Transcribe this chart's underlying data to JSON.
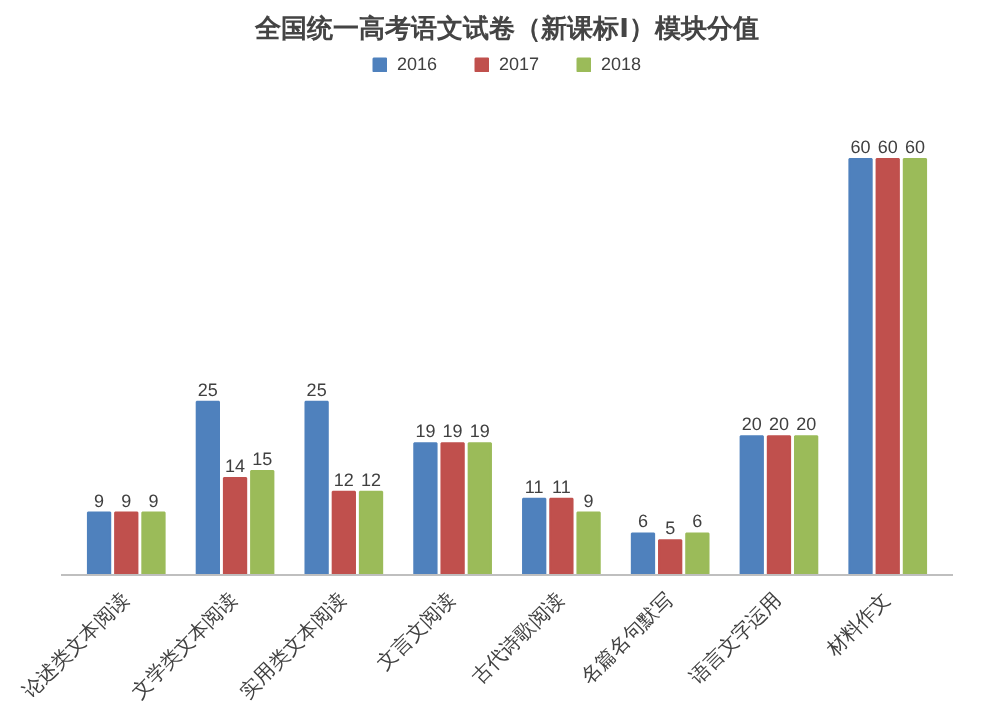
{
  "chart_data": {
    "type": "bar",
    "title": "全国统一高考语文试卷（新课标I）模块分值",
    "categories": [
      "论述类文本阅读",
      "文学类文本阅读",
      "实用类文本阅读",
      "文言文阅读",
      "古代诗歌阅读",
      "名篇名句默写",
      "语言文字运用",
      "材料作文"
    ],
    "series": [
      {
        "name": "2016",
        "color": "#4f81bd",
        "values": [
          9,
          25,
          25,
          19,
          11,
          6,
          20,
          60
        ]
      },
      {
        "name": "2017",
        "color": "#c0504d",
        "values": [
          9,
          14,
          12,
          19,
          11,
          5,
          20,
          60
        ]
      },
      {
        "name": "2018",
        "color": "#9bbb59",
        "values": [
          9,
          15,
          12,
          19,
          9,
          6,
          20,
          60
        ]
      }
    ],
    "data_labels": true,
    "legend": "top",
    "grid": false
  }
}
